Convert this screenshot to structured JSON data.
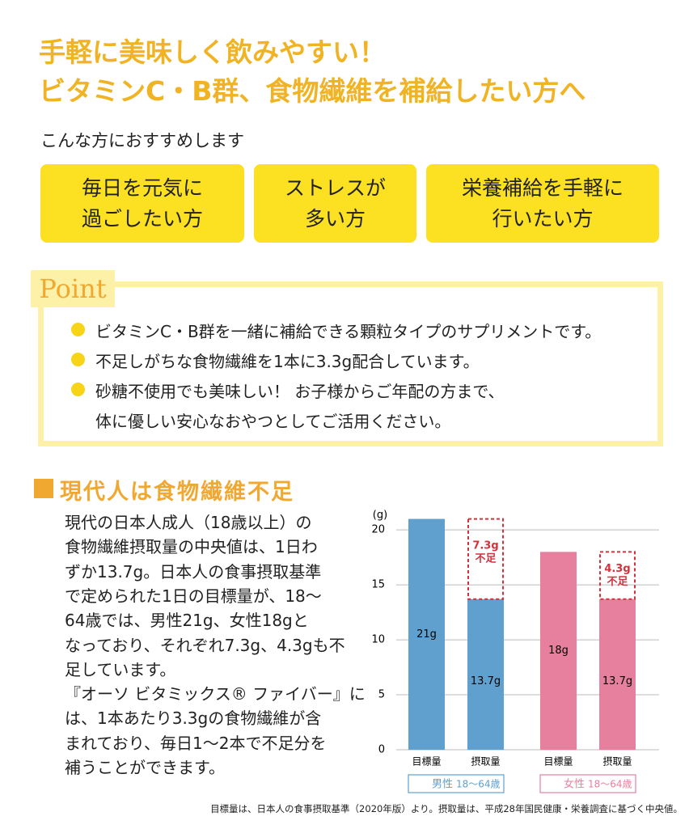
{
  "heading": {
    "lines": [
      "手軽に美味しく飲みやすい！",
      "ビタミンC・B群、食物繊維を補給したい方へ"
    ]
  },
  "recommend": {
    "title": "こんな方におすすめします",
    "boxes": [
      [
        "毎日を元気に",
        "過ごしたい方"
      ],
      [
        "ストレスが",
        "多い方"
      ],
      [
        "栄養補給を手軽に",
        "行いたい方"
      ]
    ]
  },
  "point": {
    "label": "Point",
    "items": [
      [
        "ビタミンC・B群を一緒に補給できる顆粒タイプのサプリメントです。"
      ],
      [
        "不足しがちな食物繊維を1本に3.3g配合しています。"
      ],
      [
        "砂糖不使用でも美味しい！ お子様からご年配の方まで、",
        "体に優しい安心なおやつとしてご活用ください。"
      ]
    ]
  },
  "section": {
    "title": "現代人は食物繊維不足",
    "body": [
      "現代の日本人成人（18歳以上）の",
      "食物繊維摂取量の中央値は、1日わ",
      "ずか13.7g。日本人の食事摂取基準",
      "で定められた1日の目標量が、18〜",
      "64歳では、男性21g、女性18gと",
      "なっており、それぞれ7.3g、4.3gも不",
      "足しています。",
      "『オーソ ビタミックス® ファイバー』に",
      "は、1本あたり3.3gの食物繊維が含",
      "まれており、毎日1〜2本で不足分を",
      "補うことができます。"
    ]
  },
  "chart_data": {
    "type": "bar",
    "y_unit": "(g)",
    "ylim": [
      0,
      22
    ],
    "yticks": [
      0,
      5,
      10,
      15,
      20
    ],
    "bar_labels": [
      "目標量",
      "摂取量"
    ],
    "groups": [
      {
        "label": "男性",
        "range": "18〜64歳",
        "color": "#5fa0cf",
        "target": 21,
        "target_label": "21g",
        "intake": 13.7,
        "intake_label": "13.7g",
        "shortfall": 7.3,
        "shortfall_label": [
          "7.3g",
          "不足"
        ]
      },
      {
        "label": "女性",
        "range": "18〜64歳",
        "color": "#e6809e",
        "target": 18,
        "target_label": "18g",
        "intake": 13.7,
        "intake_label": "13.7g",
        "shortfall": 4.3,
        "shortfall_label": [
          "4.3g",
          "不足"
        ]
      }
    ],
    "shortfall_color": "#d2323c"
  },
  "footnote": "目標量は、日本人の食事摂取基準（2020年版）より。摂取量は、平成28年国民健康・栄養調査に基づく中央値。"
}
